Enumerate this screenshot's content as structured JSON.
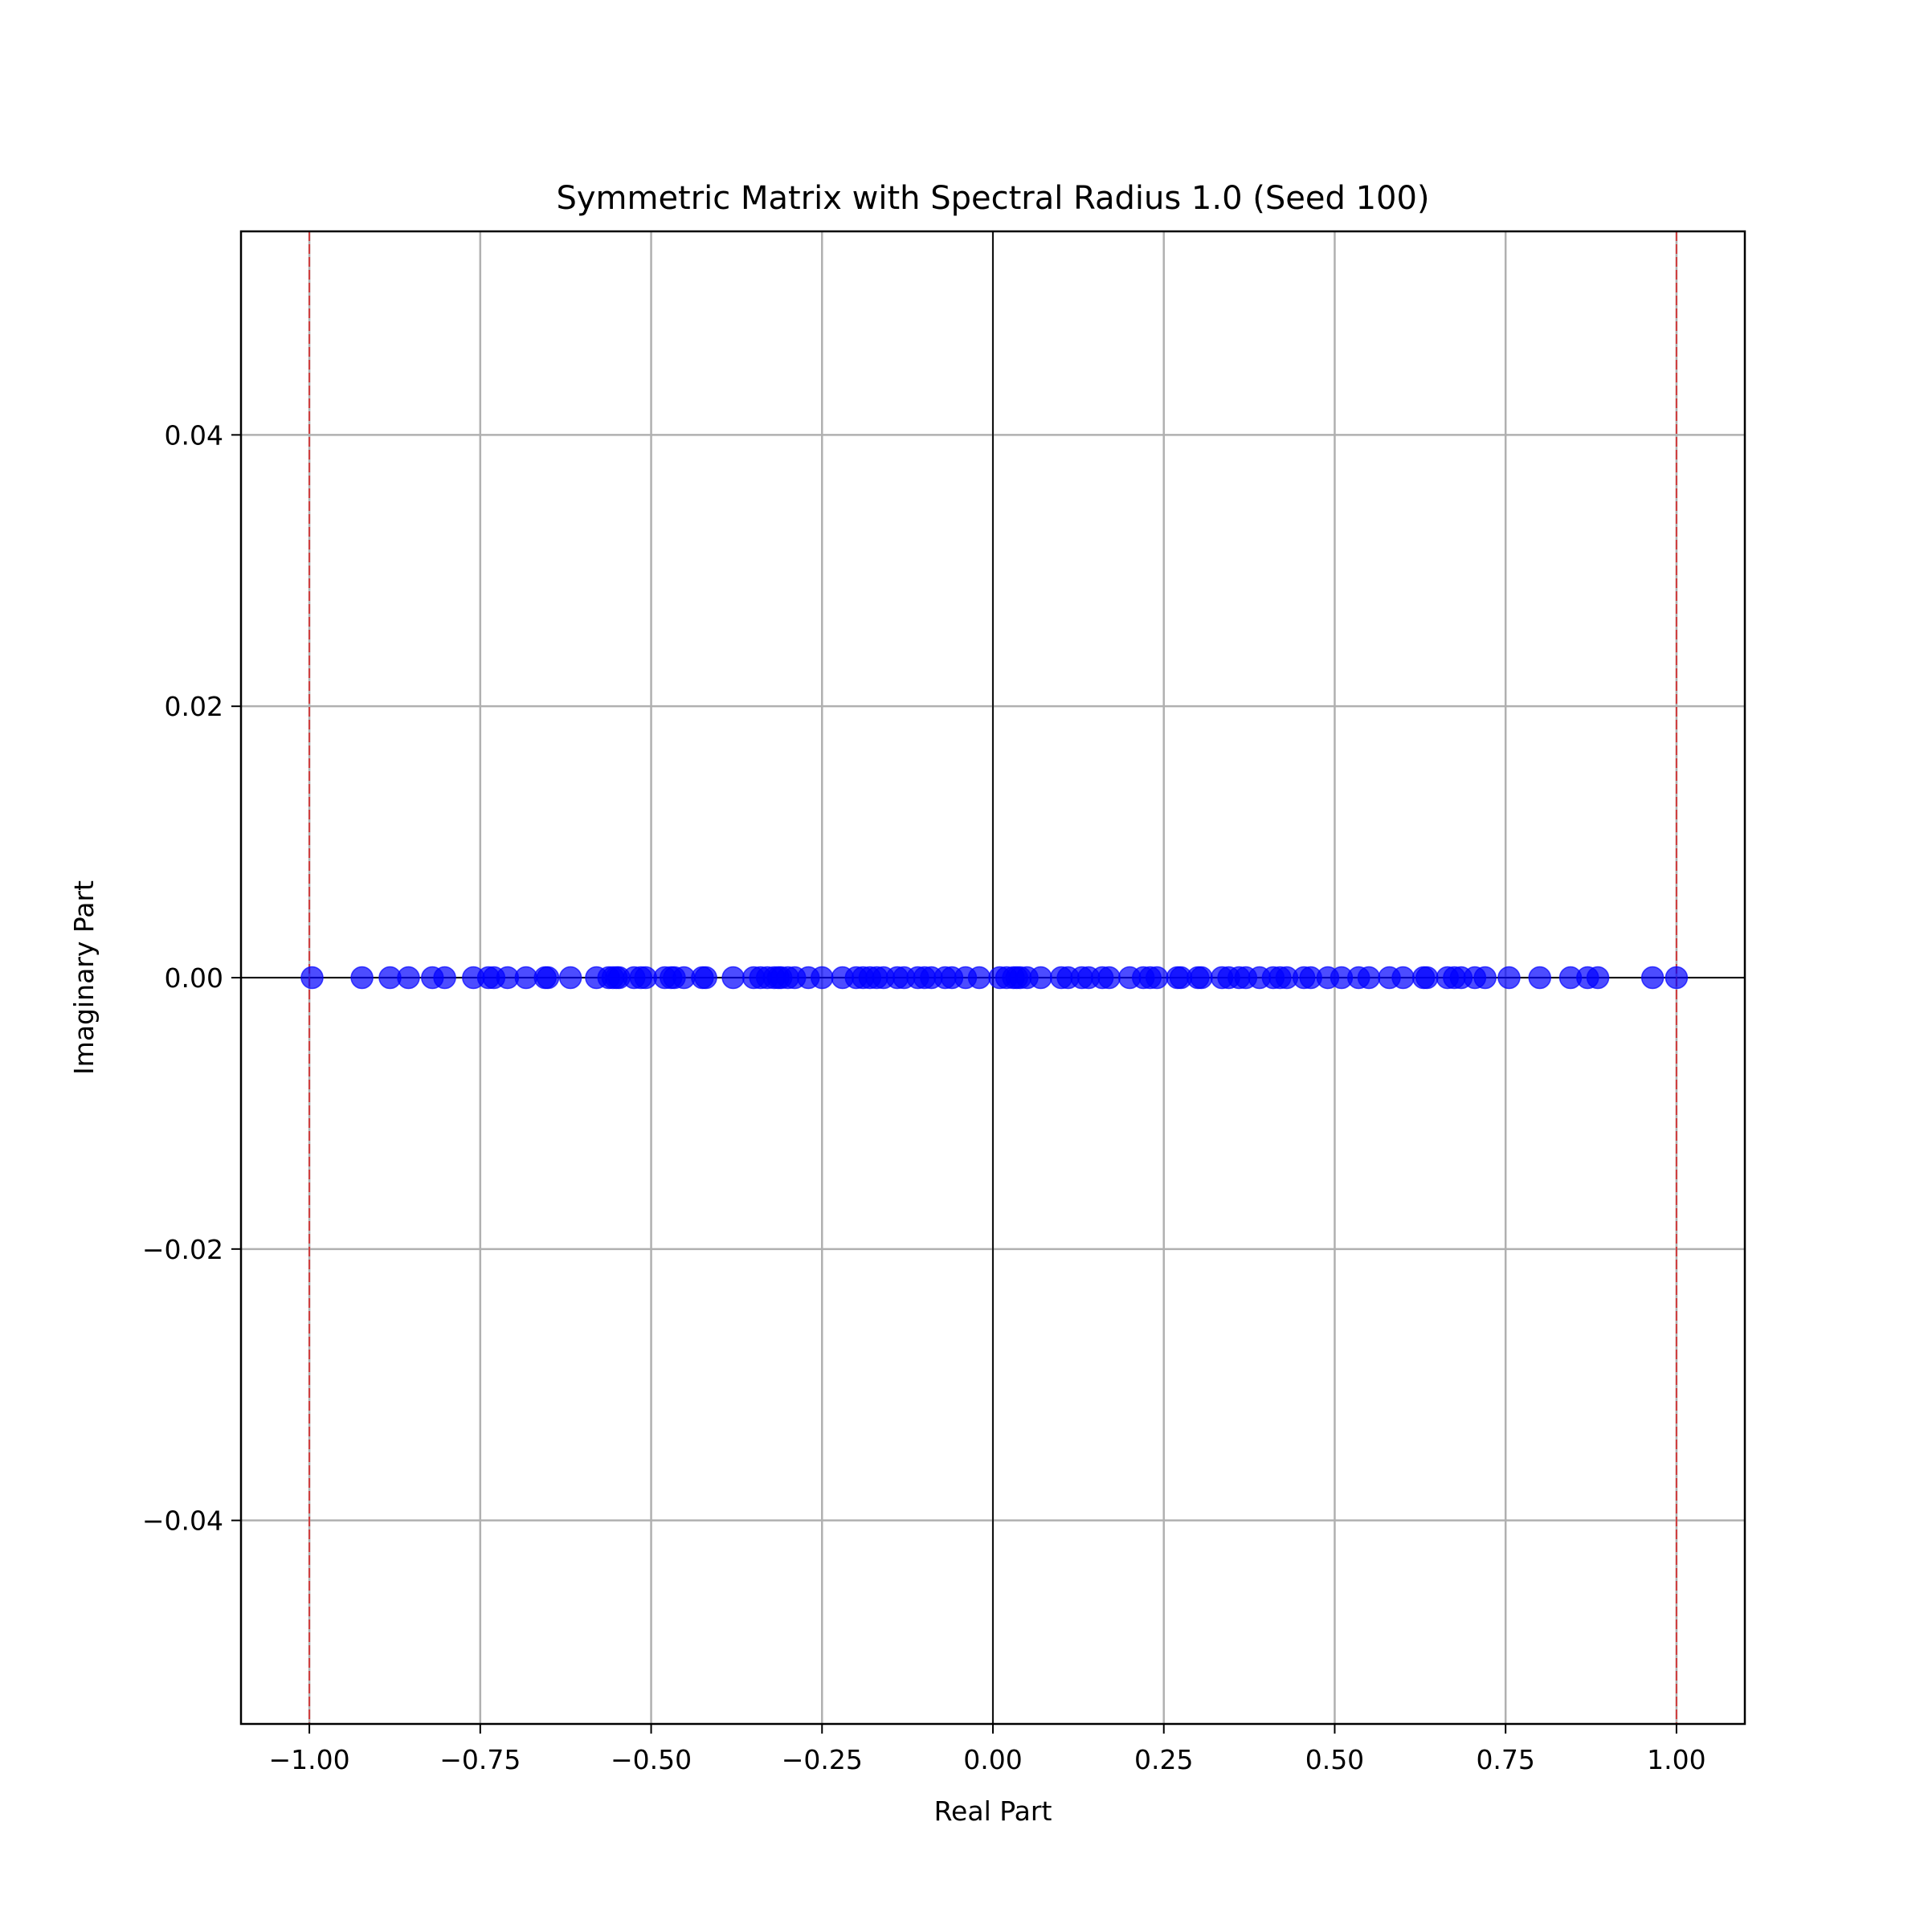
{
  "chart_data": {
    "type": "scatter",
    "title": "Symmetric Matrix with Spectral Radius 1.0 (Seed 100)",
    "xlabel": "Real Part",
    "ylabel": "Imaginary Part",
    "xlim": [
      -1.1,
      1.1
    ],
    "ylim": [
      -0.055,
      0.055
    ],
    "xticks": [
      -1.0,
      -0.75,
      -0.5,
      -0.25,
      0.0,
      0.25,
      0.5,
      0.75,
      1.0
    ],
    "xtick_labels": [
      "−1.00",
      "−0.75",
      "−0.50",
      "−0.25",
      "0.00",
      "0.25",
      "0.50",
      "0.75",
      "1.00"
    ],
    "yticks": [
      0.04,
      0.02,
      0.0,
      -0.02,
      -0.04
    ],
    "ytick_labels": [
      "0.04",
      "0.02",
      "0.00",
      "−0.02",
      "−0.04"
    ],
    "grid": true,
    "point_color": "#0000ff",
    "point_alpha": 0.7,
    "reference_vlines": {
      "x": [
        -1.0,
        1.0
      ],
      "color": "#d62728",
      "style": "dashed"
    },
    "axis_lines": {
      "x": 0.0,
      "y": 0.0,
      "color": "#000000"
    },
    "series": [
      {
        "x": [
          -0.996,
          -0.923,
          -0.882,
          -0.855,
          -0.82,
          -0.802,
          -0.76,
          -0.738,
          -0.73,
          -0.71,
          -0.683,
          -0.655,
          -0.651,
          -0.618,
          -0.58,
          -0.562,
          -0.556,
          -0.551,
          -0.547,
          -0.525,
          -0.515,
          -0.508,
          -0.48,
          -0.471,
          -0.466,
          -0.452,
          -0.425,
          -0.42,
          -0.38,
          -0.35,
          -0.34,
          -0.33,
          -0.32,
          -0.314,
          -0.31,
          -0.3,
          -0.29,
          -0.27,
          -0.25,
          -0.22,
          -0.2,
          -0.19,
          -0.18,
          -0.17,
          -0.16,
          -0.14,
          -0.13,
          -0.11,
          -0.1,
          -0.09,
          -0.07,
          -0.06,
          -0.04,
          -0.02,
          0.01,
          0.02,
          0.03,
          0.035,
          0.04,
          0.05,
          0.07,
          0.1,
          0.11,
          0.13,
          0.14,
          0.16,
          0.17,
          0.2,
          0.22,
          0.23,
          0.24,
          0.27,
          0.275,
          0.3,
          0.305,
          0.335,
          0.345,
          0.36,
          0.37,
          0.39,
          0.41,
          0.42,
          0.43,
          0.455,
          0.465,
          0.49,
          0.51,
          0.535,
          0.55,
          0.58,
          0.6,
          0.63,
          0.635,
          0.665,
          0.675,
          0.685,
          0.705,
          0.72,
          0.755,
          0.8,
          0.845,
          0.87,
          0.885,
          0.965,
          1.0
        ],
        "y": [
          0,
          0,
          0,
          0,
          0,
          0,
          0,
          0,
          0,
          0,
          0,
          0,
          0,
          0,
          0,
          0,
          0,
          0,
          0,
          0,
          0,
          0,
          0,
          0,
          0,
          0,
          0,
          0,
          0,
          0,
          0,
          0,
          0,
          0,
          0,
          0,
          0,
          0,
          0,
          0,
          0,
          0,
          0,
          0,
          0,
          0,
          0,
          0,
          0,
          0,
          0,
          0,
          0,
          0,
          0,
          0,
          0,
          0,
          0,
          0,
          0,
          0,
          0,
          0,
          0,
          0,
          0,
          0,
          0,
          0,
          0,
          0,
          0,
          0,
          0,
          0,
          0,
          0,
          0,
          0,
          0,
          0,
          0,
          0,
          0,
          0,
          0,
          0,
          0,
          0,
          0,
          0,
          0,
          0,
          0,
          0,
          0,
          0,
          0,
          0,
          0,
          0,
          0,
          0,
          0
        ]
      }
    ]
  }
}
